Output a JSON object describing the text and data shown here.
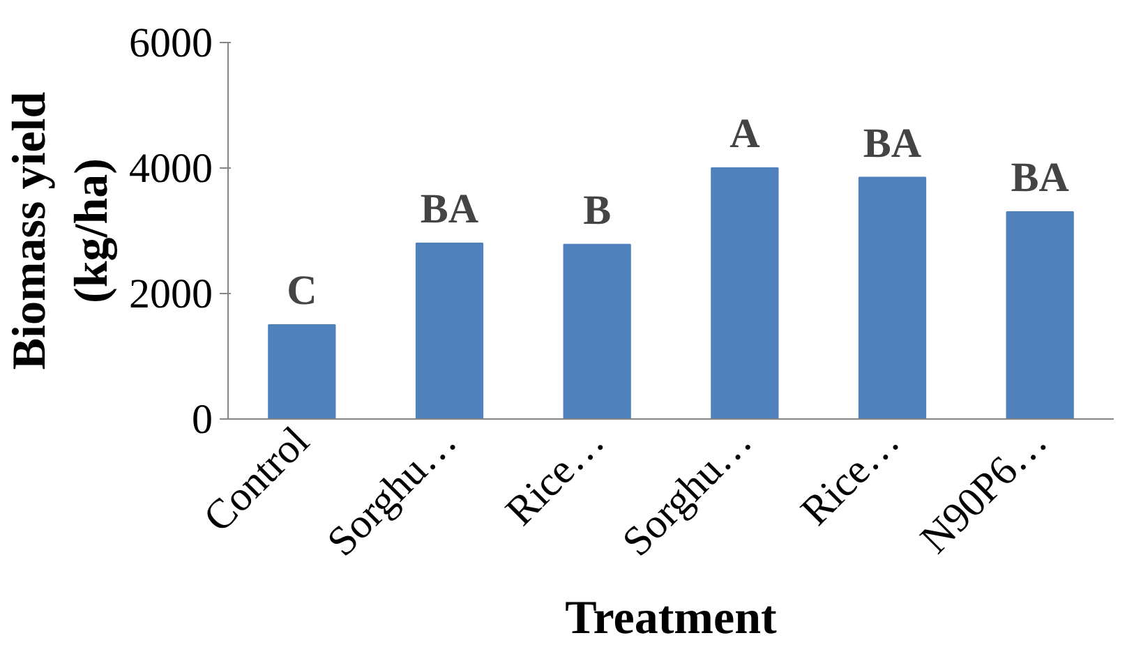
{
  "chart_data": {
    "type": "bar",
    "xlabel": "Treatment",
    "ylabel": "Biomass yield\n(kg/ha)",
    "categories": [
      "Control",
      "Sorghu…",
      "Rice…",
      "Sorghu…",
      "Rice…",
      "N90P6…"
    ],
    "values": [
      1500,
      2800,
      2780,
      4000,
      3850,
      3300
    ],
    "value_labels": [
      "C",
      "BA",
      "B",
      "A",
      "BA",
      "BA"
    ],
    "color": "#4f81bd",
    "ylim": [
      0,
      6000
    ],
    "yticks": [
      0,
      2000,
      4000,
      6000
    ],
    "grid": false
  }
}
